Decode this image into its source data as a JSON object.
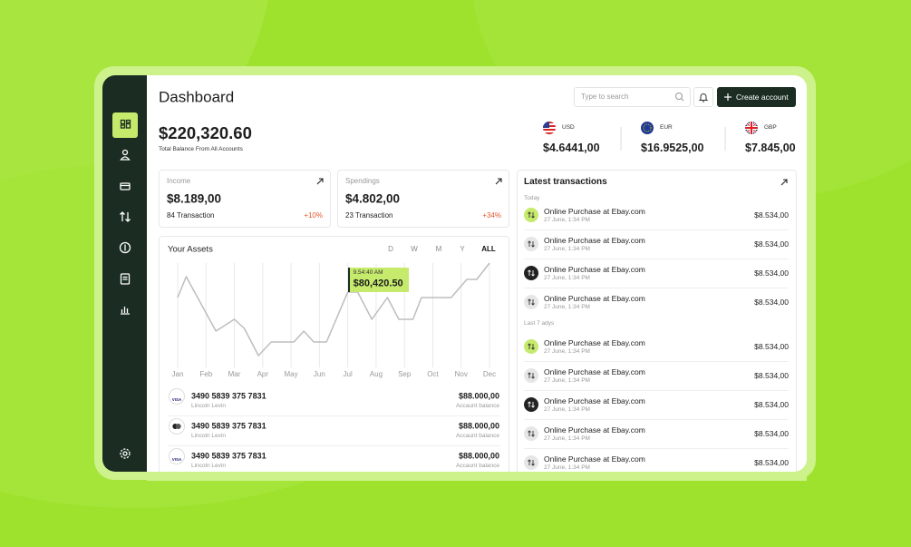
{
  "header": {
    "title": "Dashboard",
    "search_placeholder": "Type to search",
    "button": "Create account"
  },
  "balance": {
    "amount": "$220,320.60",
    "label": "Total Balance From All Accounts"
  },
  "currencies": [
    {
      "code": "USD",
      "value": "$4.6441,00"
    },
    {
      "code": "EUR",
      "value": "$16.9525,00"
    },
    {
      "code": "GBP",
      "value": "$7.845,00"
    }
  ],
  "summary_cards": [
    {
      "title": "Income",
      "amount": "$8.189,00",
      "transactions": "84 Transaction",
      "change": "+10%"
    },
    {
      "title": "Spendings",
      "amount": "$4.802,00",
      "transactions": "23 Transaction",
      "change": "+34%"
    }
  ],
  "assets": {
    "title": "Your Assets",
    "periods": [
      "D",
      "W",
      "M",
      "Y",
      "ALL"
    ],
    "chart": {
      "type": "line",
      "color": "#bdbdbd",
      "x": [
        0,
        0.3,
        1.35,
        2,
        2.35,
        2.85,
        3.3,
        4.1,
        4.45,
        4.8,
        5.25,
        6,
        6.35,
        6.85,
        7.4,
        7.8,
        8.3,
        8.6,
        9.65,
        10.2,
        10.55,
        11
      ],
      "values": [
        78500,
        90000,
        60000,
        66500,
        61500,
        46500,
        54000,
        54000,
        60000,
        54000,
        54000,
        81500,
        81500,
        66500,
        78500,
        66500,
        66500,
        78500,
        78500,
        88500,
        88500,
        97500
      ],
      "xlim": [
        0,
        11
      ],
      "ylim": [
        40000,
        100000
      ],
      "xticks": [
        {
          "value": 0,
          "label": "Jan"
        },
        {
          "value": 1,
          "label": "Feb"
        },
        {
          "value": 2,
          "label": "Mar"
        },
        {
          "value": 3,
          "label": "Apr"
        },
        {
          "value": 4,
          "label": "May"
        },
        {
          "value": 5,
          "label": "Jun"
        },
        {
          "value": 6,
          "label": "Jul"
        },
        {
          "value": 7,
          "label": "Aug"
        },
        {
          "value": 8,
          "label": "Sep"
        },
        {
          "value": 9,
          "label": "Oct"
        },
        {
          "value": 10,
          "label": "Nov"
        },
        {
          "value": 11,
          "label": "Dec"
        }
      ],
      "grid": true
    },
    "tooltip": {
      "time": "9.54:40 AM",
      "value": "$80,420.50"
    }
  },
  "cards": [
    {
      "brand": "VISA",
      "number": "3490 5839 375 7831",
      "holder": "Lincoln Levin",
      "amount": "$88.000,00",
      "amount_label": "Accaunt balance"
    },
    {
      "number": "3490 5839 375 7831",
      "holder": "Lincoln Levin",
      "amount": "$88.000,00",
      "amount_label": "Accaunt balance"
    },
    {
      "brand": "VISA",
      "number": "3490 5839 375 7831",
      "holder": "Lincoln Levin",
      "amount": "$88.000,00",
      "amount_label": "Accaunt balance"
    }
  ],
  "transactions": {
    "title": "Latest transactions",
    "groups": [
      {
        "label": "Today",
        "items": [
          {
            "title": "Online Purchase at Ebay.com",
            "date": "27 June, 1:34 PM",
            "amount": "$8.534,00",
            "icon_color": "#c5ea6c"
          },
          {
            "title": "Online Purchase at Ebay.com",
            "date": "27 June, 1:34 PM",
            "amount": "$8.534,00",
            "icon_color": "#e6e6e6"
          },
          {
            "title": "Online Purchase at Ebay.com",
            "date": "27 June, 1:34 PM",
            "amount": "$8.534,00",
            "icon_color": "#222222"
          },
          {
            "title": "Online Purchase at Ebay.com",
            "date": "27 June, 1:34 PM",
            "amount": "$8.534,00",
            "icon_color": "#e6e6e6"
          }
        ]
      },
      {
        "label": "Last 7 adys",
        "items": [
          {
            "title": "Online Purchase at Ebay.com",
            "date": "27 June, 1:34 PM",
            "amount": "$8.534,00",
            "icon_color": "#c5ea6c"
          },
          {
            "title": "Online Purchase at Ebay.com",
            "date": "27 June, 1:34 PM",
            "amount": "$8.534,00",
            "icon_color": "#e6e6e6"
          },
          {
            "title": "Online Purchase at Ebay.com",
            "date": "27 June, 1:34 PM",
            "amount": "$8.534,00",
            "icon_color": "#222222"
          },
          {
            "title": "Online Purchase at Ebay.com",
            "date": "27 June, 1:34 PM",
            "amount": "$8.534,00",
            "icon_color": "#e6e6e6"
          },
          {
            "title": "Online Purchase at Ebay.com",
            "date": "27 June, 1:34 PM",
            "amount": "$8.534,00",
            "icon_color": "#e6e6e6"
          }
        ]
      }
    ]
  }
}
